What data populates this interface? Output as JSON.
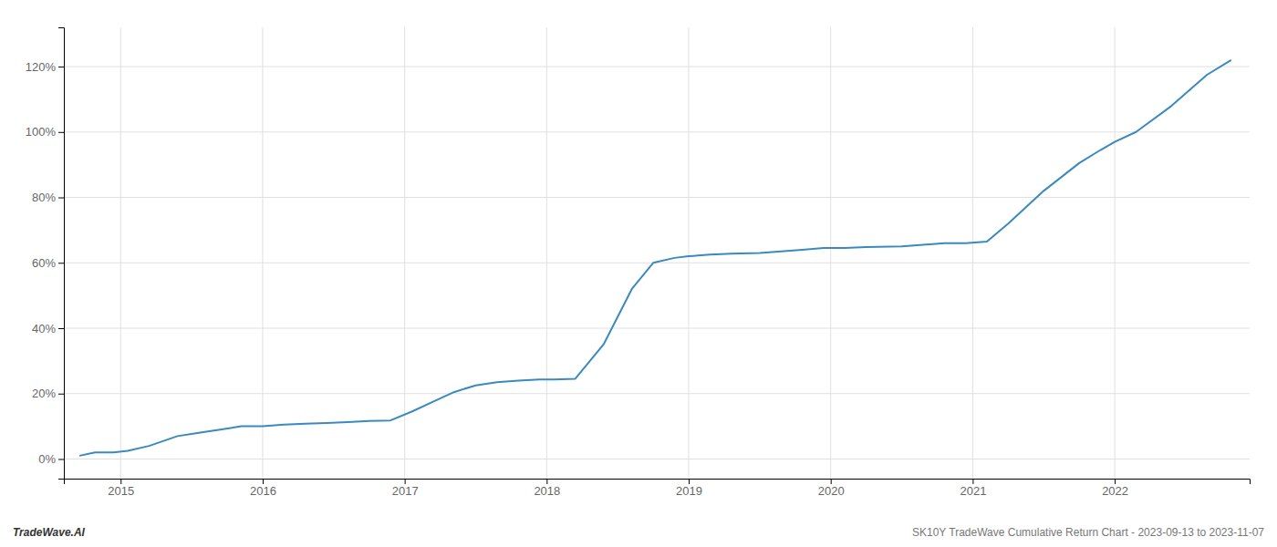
{
  "chart_data": {
    "type": "line",
    "color": "#3a8abf",
    "grid": true,
    "annotations": [
      "TradeWave.AI",
      "SK10Y TradeWave Cumulative Return Chart - 2023-09-13 to 2023-11-07"
    ],
    "x": [
      2014.71,
      2014.82,
      2014.95,
      2015.05,
      2015.2,
      2015.4,
      2015.55,
      2015.7,
      2015.85,
      2016.0,
      2016.15,
      2016.3,
      2016.45,
      2016.6,
      2016.75,
      2016.9,
      2017.05,
      2017.2,
      2017.35,
      2017.5,
      2017.65,
      2017.8,
      2017.95,
      2018.05,
      2018.2,
      2018.4,
      2018.6,
      2018.75,
      2018.9,
      2019.0,
      2019.15,
      2019.3,
      2019.5,
      2019.65,
      2019.8,
      2019.95,
      2020.1,
      2020.25,
      2020.5,
      2020.65,
      2020.8,
      2020.95,
      2021.1,
      2021.25,
      2021.5,
      2021.75,
      2021.9,
      2022.0,
      2022.15,
      2022.4,
      2022.65,
      2022.82
    ],
    "values": [
      0.01,
      0.02,
      0.02,
      0.025,
      0.04,
      0.07,
      0.08,
      0.09,
      0.1,
      0.1,
      0.105,
      0.108,
      0.11,
      0.113,
      0.116,
      0.118,
      0.145,
      0.175,
      0.205,
      0.225,
      0.235,
      0.24,
      0.243,
      0.243,
      0.245,
      0.35,
      0.52,
      0.6,
      0.615,
      0.62,
      0.625,
      0.628,
      0.63,
      0.635,
      0.64,
      0.645,
      0.645,
      0.648,
      0.65,
      0.655,
      0.66,
      0.66,
      0.665,
      0.72,
      0.82,
      0.905,
      0.945,
      0.97,
      1.0,
      1.08,
      1.175,
      1.22
    ],
    "xlim": [
      2014.6,
      2022.95
    ],
    "ylim": [
      -0.06,
      1.32
    ],
    "xticks": [
      2015,
      2016,
      2017,
      2018,
      2019,
      2020,
      2021,
      2022
    ],
    "yticks": [
      {
        "value": 0.0,
        "label": "0%"
      },
      {
        "value": 0.2,
        "label": "20%"
      },
      {
        "value": 0.4,
        "label": "40%"
      },
      {
        "value": 0.6,
        "label": "60%"
      },
      {
        "value": 0.8,
        "label": "80%"
      },
      {
        "value": 1.0,
        "label": "100%"
      },
      {
        "value": 1.2,
        "label": "120%"
      }
    ]
  }
}
